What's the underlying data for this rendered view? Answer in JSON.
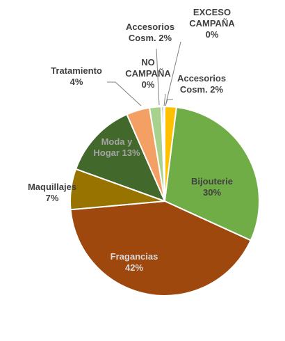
{
  "chart_data": {
    "type": "pie",
    "start_angle_deg": 0,
    "direction": "clockwise",
    "slices": [
      {
        "name": "Accesorios Cosm.",
        "label_lines": [
          "Accesorios",
          "Cosm. 2%"
        ],
        "value": 2,
        "color": "#ffc000",
        "label_color": "#404040"
      },
      {
        "name": "Bijouterie",
        "label_lines": [
          "Bijouterie",
          "30%"
        ],
        "value": 30,
        "color": "#70ad47",
        "label_color": "#404040"
      },
      {
        "name": "Fragancias",
        "label_lines": [
          "Fragancias",
          "42%"
        ],
        "value": 42,
        "color": "#9e480e",
        "label_color": "#d9d9d9"
      },
      {
        "name": "Maquillajes",
        "label_lines": [
          "Maquillajes",
          "7%"
        ],
        "value": 7,
        "color": "#997300",
        "label_color": "#404040"
      },
      {
        "name": "Moda y Hogar",
        "label_lines": [
          "Moda y",
          "Hogar 13%"
        ],
        "value": 13,
        "color": "#43682b",
        "label_color": "#a5a5a5"
      },
      {
        "name": "Tratamiento",
        "label_lines": [
          "Tratamiento",
          "4%"
        ],
        "value": 4,
        "color": "#f4a064",
        "label_color": "#404040"
      },
      {
        "name": "Accesorios Cosm.",
        "label_lines": [
          "Accesorios",
          "Cosm. 2%"
        ],
        "value": 2,
        "color": "#a9d18e",
        "label_color": "#404040"
      },
      {
        "name": "NO CAMPAÑA",
        "label_lines": [
          "NO",
          "CAMPAÑA",
          "0%"
        ],
        "value": 0.3,
        "color": "#7f7f7f",
        "label_color": "#404040"
      },
      {
        "name": "EXCESO CAMPAÑA",
        "label_lines": [
          "EXCESO",
          "CAMPAÑA",
          "0%"
        ],
        "value": 0.3,
        "color": "#d9d9d9",
        "label_color": "#404040"
      }
    ]
  }
}
